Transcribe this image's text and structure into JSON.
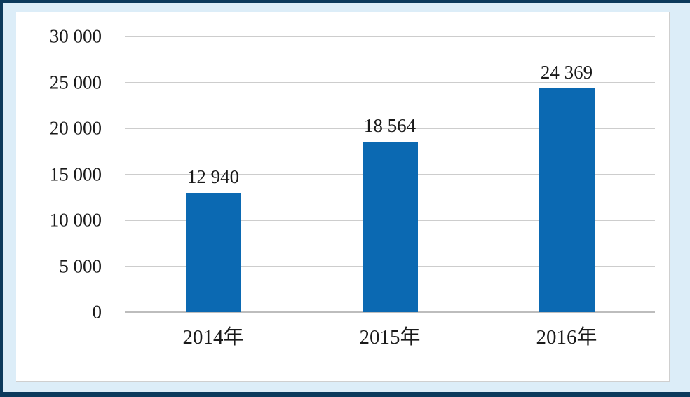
{
  "chart_data": {
    "type": "bar",
    "categories": [
      "2014年",
      "2015年",
      "2016年"
    ],
    "values": [
      12940,
      18564,
      24369
    ],
    "value_labels": [
      "12 940",
      "18 564",
      "24 369"
    ],
    "title": "",
    "xlabel": "",
    "ylabel": "",
    "ylim": [
      0,
      30000
    ],
    "ytick_step": 5000,
    "ytick_labels": [
      "0",
      "5 000",
      "10 000",
      "15 000",
      "20 000",
      "25 000",
      "30 000"
    ],
    "grid": true,
    "legend_position": "none"
  },
  "colors": {
    "bar": "#0b69b2",
    "frame_border": "#0c3a5c",
    "frame_background": "#dcedf8",
    "panel_background": "#ffffff",
    "gridline": "#cdcdcd",
    "axis_line": "#bdbdbd",
    "text": "#1a1a1a"
  }
}
